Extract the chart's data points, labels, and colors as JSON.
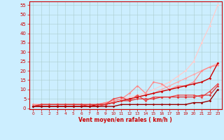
{
  "background_color": "#cceeff",
  "grid_color": "#aacccc",
  "xlabel": "Vent moyen/en rafales ( km/h )",
  "xlabel_color": "#cc0000",
  "tick_color": "#cc0000",
  "x_ticks": [
    0,
    1,
    2,
    3,
    4,
    5,
    6,
    7,
    8,
    9,
    10,
    11,
    12,
    13,
    14,
    15,
    16,
    17,
    18,
    19,
    20,
    21,
    22,
    23
  ],
  "y_ticks": [
    0,
    5,
    10,
    15,
    20,
    25,
    30,
    35,
    40,
    45,
    50,
    55
  ],
  "ylim": [
    -0.5,
    57
  ],
  "xlim": [
    -0.5,
    23.5
  ],
  "lines": [
    {
      "x": [
        0,
        1,
        2,
        3,
        4,
        5,
        6,
        7,
        8,
        9,
        10,
        11,
        12,
        13,
        14,
        15,
        16,
        17,
        18,
        19,
        20,
        21,
        22,
        23
      ],
      "y": [
        2,
        2,
        2,
        2,
        2,
        2,
        2,
        2,
        2,
        3,
        4,
        5,
        6,
        7,
        8,
        10,
        12,
        14,
        17,
        20,
        25,
        35,
        44,
        55
      ],
      "color": "#ffcccc",
      "linewidth": 0.9,
      "marker": "D",
      "markersize": 1.8
    },
    {
      "x": [
        0,
        1,
        2,
        3,
        4,
        5,
        6,
        7,
        8,
        9,
        10,
        11,
        12,
        13,
        14,
        15,
        16,
        17,
        18,
        19,
        20,
        21,
        22,
        23
      ],
      "y": [
        2,
        2,
        2,
        2,
        2,
        2,
        2,
        2,
        2,
        3,
        3,
        4,
        5,
        6,
        7,
        8,
        10,
        12,
        14,
        16,
        18,
        20,
        22,
        24
      ],
      "color": "#ffaaaa",
      "linewidth": 0.9,
      "marker": "D",
      "markersize": 1.8
    },
    {
      "x": [
        0,
        1,
        2,
        3,
        4,
        5,
        6,
        7,
        8,
        9,
        10,
        11,
        12,
        13,
        14,
        15,
        16,
        17,
        18,
        19,
        20,
        21,
        22,
        23
      ],
      "y": [
        2,
        2,
        2,
        2,
        2,
        2,
        2,
        2,
        2,
        3,
        4,
        5,
        8,
        12,
        8,
        14,
        13,
        10,
        12,
        12,
        14,
        20,
        22,
        23
      ],
      "color": "#ff8888",
      "linewidth": 0.9,
      "marker": "D",
      "markersize": 1.8
    },
    {
      "x": [
        0,
        1,
        2,
        3,
        4,
        5,
        6,
        7,
        8,
        9,
        10,
        11,
        12,
        13,
        14,
        15,
        16,
        17,
        18,
        19,
        20,
        21,
        22,
        23
      ],
      "y": [
        1,
        1,
        1,
        1,
        1,
        1,
        1,
        1,
        2,
        2,
        3,
        4,
        5,
        6,
        7,
        8,
        9,
        10,
        11,
        12,
        13,
        14,
        16,
        24
      ],
      "color": "#cc0000",
      "linewidth": 1.0,
      "marker": "D",
      "markersize": 1.8
    },
    {
      "x": [
        0,
        1,
        2,
        3,
        4,
        5,
        6,
        7,
        8,
        9,
        10,
        11,
        12,
        13,
        14,
        15,
        16,
        17,
        18,
        19,
        20,
        21,
        22,
        23
      ],
      "y": [
        1,
        2,
        2,
        2,
        2,
        2,
        2,
        1,
        1,
        2,
        5,
        6,
        4,
        7,
        4,
        6,
        6,
        6,
        7,
        7,
        7,
        6,
        9,
        13
      ],
      "color": "#ee4444",
      "linewidth": 0.9,
      "marker": "D",
      "markersize": 1.8
    },
    {
      "x": [
        0,
        1,
        2,
        3,
        4,
        5,
        6,
        7,
        8,
        9,
        10,
        11,
        12,
        13,
        14,
        15,
        16,
        17,
        18,
        19,
        20,
        21,
        22,
        23
      ],
      "y": [
        1,
        2,
        2,
        2,
        2,
        2,
        2,
        2,
        2,
        2,
        3,
        4,
        4,
        5,
        5,
        5,
        6,
        6,
        6,
        6,
        6,
        7,
        7,
        12
      ],
      "color": "#dd3333",
      "linewidth": 0.9,
      "marker": "D",
      "markersize": 1.8
    },
    {
      "x": [
        0,
        1,
        2,
        3,
        4,
        5,
        6,
        7,
        8,
        9,
        10,
        11,
        12,
        13,
        14,
        15,
        16,
        17,
        18,
        19,
        20,
        21,
        22,
        23
      ],
      "y": [
        1,
        1,
        1,
        1,
        1,
        1,
        1,
        1,
        1,
        1,
        1,
        2,
        2,
        2,
        2,
        2,
        2,
        2,
        2,
        2,
        3,
        3,
        4,
        10
      ],
      "color": "#990000",
      "linewidth": 1.0,
      "marker": "D",
      "markersize": 1.8
    }
  ]
}
